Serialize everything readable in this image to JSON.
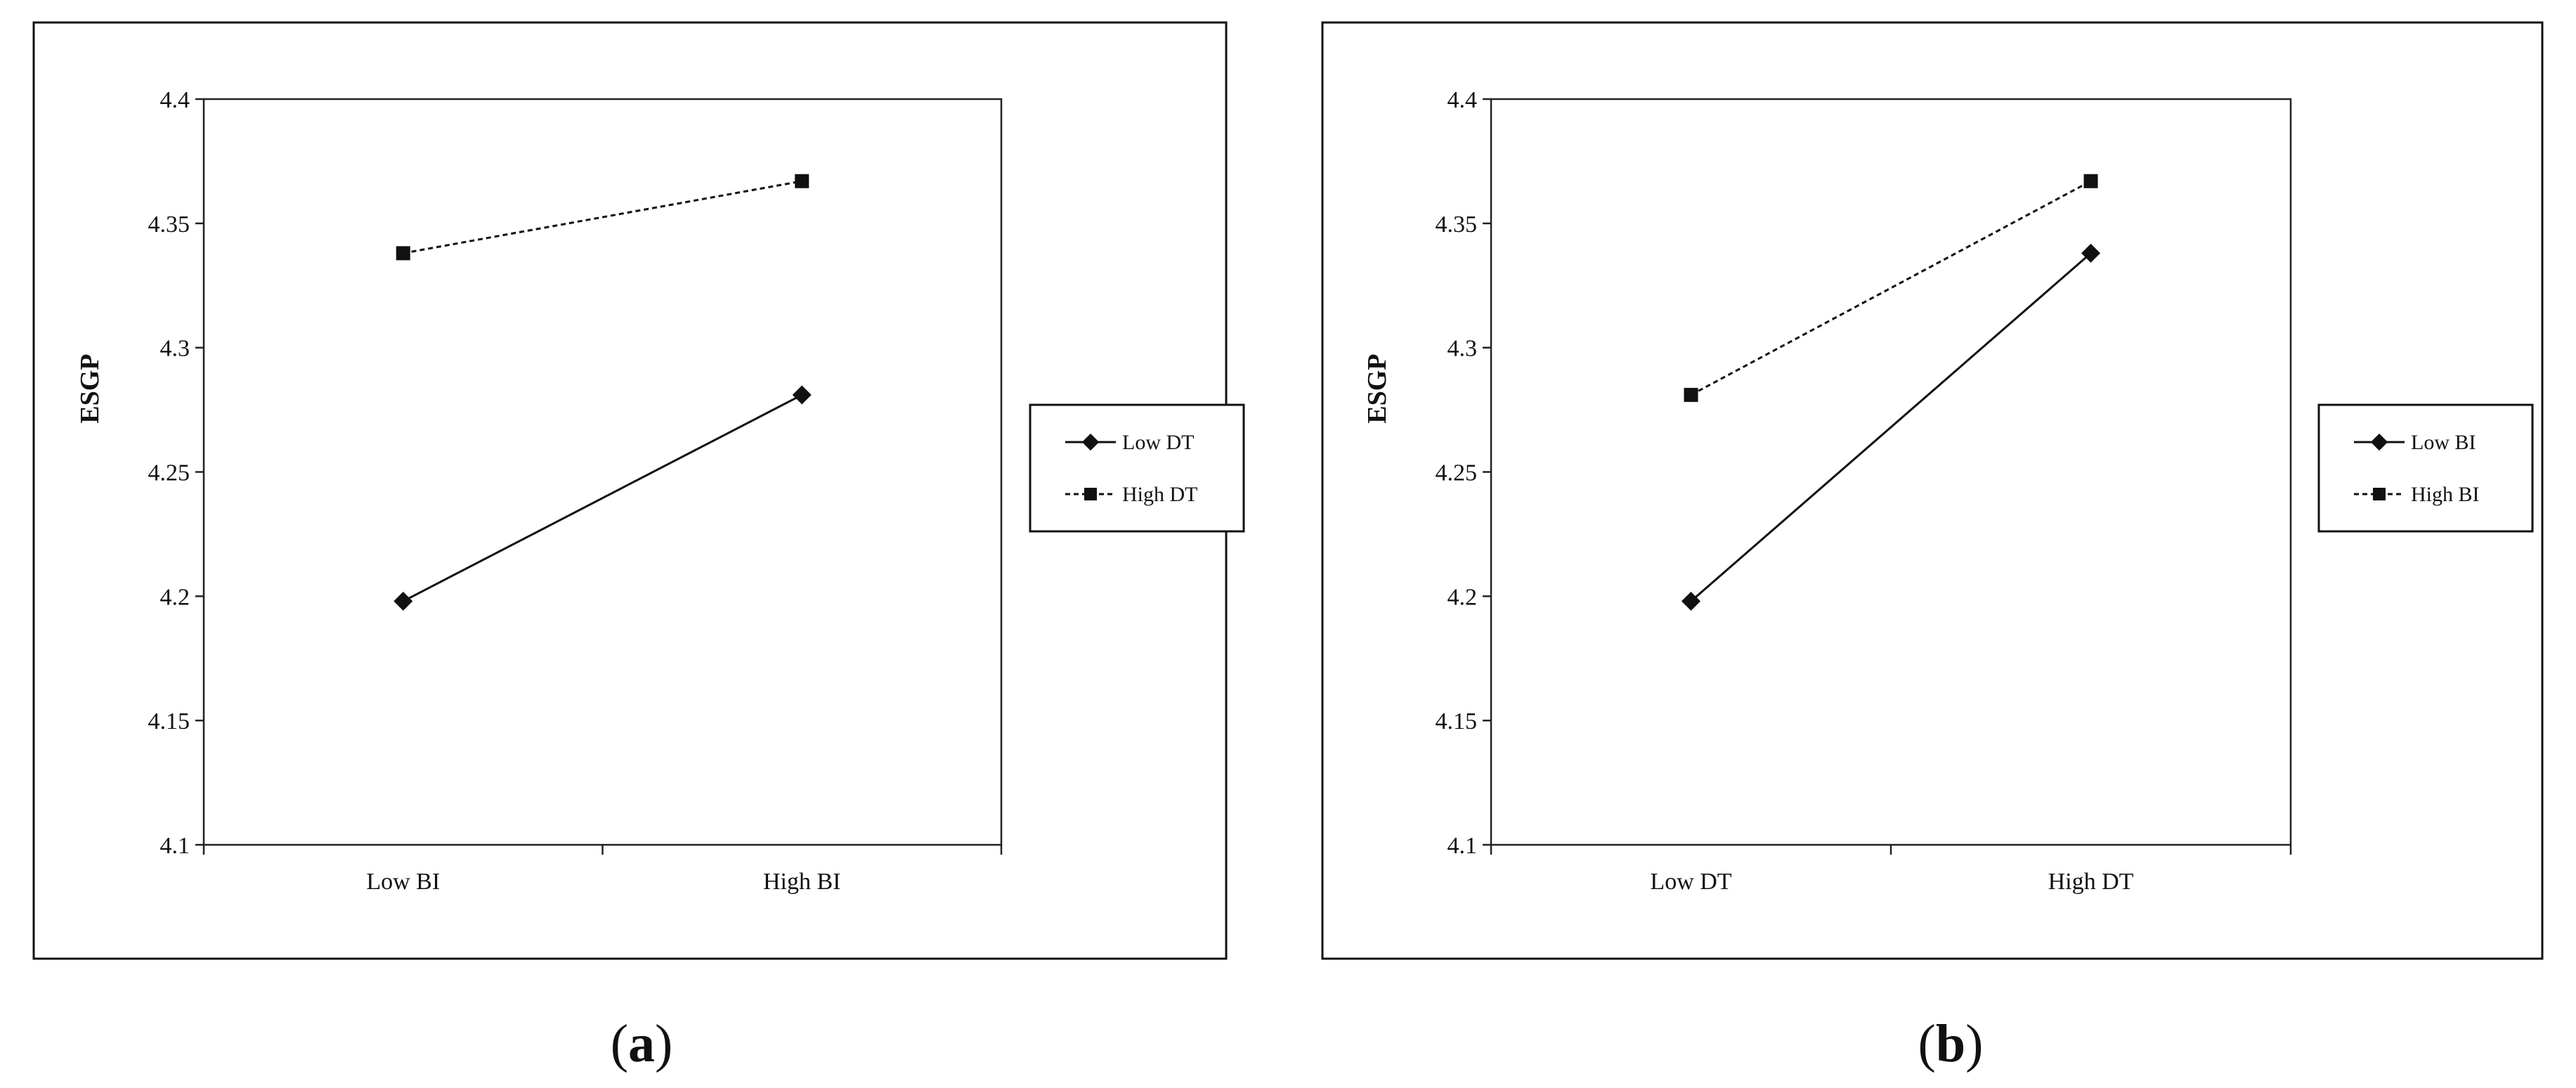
{
  "chart_data": [
    {
      "type": "line",
      "caption": "a",
      "ylabel": "ESGP",
      "ylim": [
        4.1,
        4.4
      ],
      "yticks": [
        "4.1",
        "4.15",
        "4.2",
        "4.25",
        "4.3",
        "4.35",
        "4.4"
      ],
      "categories": [
        "Low BI",
        "High BI"
      ],
      "grid": false,
      "legend_position": "right",
      "series": [
        {
          "name": "Low DT",
          "values": [
            4.198,
            4.281
          ],
          "marker": "diamond",
          "line": "solid"
        },
        {
          "name": "High DT",
          "values": [
            4.338,
            4.367
          ],
          "marker": "square",
          "line": "dashed"
        }
      ]
    },
    {
      "type": "line",
      "caption": "b",
      "ylabel": "ESGP",
      "ylim": [
        4.1,
        4.4
      ],
      "yticks": [
        "4.1",
        "4.15",
        "4.2",
        "4.25",
        "4.3",
        "4.35",
        "4.4"
      ],
      "categories": [
        "Low DT",
        "High DT"
      ],
      "grid": false,
      "legend_position": "right",
      "series": [
        {
          "name": "Low BI",
          "values": [
            4.198,
            4.338
          ],
          "marker": "diamond",
          "line": "solid"
        },
        {
          "name": "High BI",
          "values": [
            4.281,
            4.367
          ],
          "marker": "square",
          "line": "dashed"
        }
      ]
    }
  ],
  "colors": {
    "line": "#111111",
    "frame": "#111111",
    "background": "#ffffff"
  }
}
